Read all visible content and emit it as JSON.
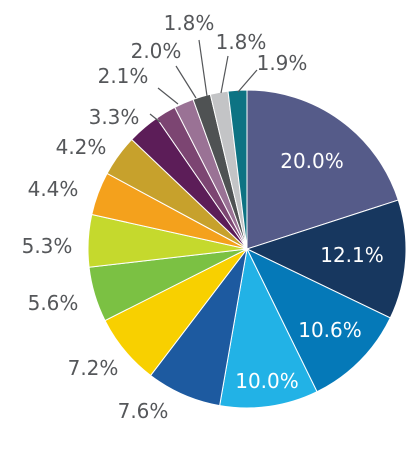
{
  "chart_data": {
    "type": "pie",
    "start": "12 o'clock, clockwise",
    "slices": [
      {
        "label": "20.0%",
        "value": 20.0,
        "color": "#555b89",
        "label_inside": true
      },
      {
        "label": "12.1%",
        "value": 12.1,
        "color": "#17375f",
        "label_inside": true
      },
      {
        "label": "10.6%",
        "value": 10.6,
        "color": "#0579b8",
        "label_inside": true
      },
      {
        "label": "10.0%",
        "value": 10.0,
        "color": "#22b2e6",
        "label_inside": true
      },
      {
        "label": "7.6%",
        "value": 7.6,
        "color": "#1d5aa0",
        "label_inside": false
      },
      {
        "label": "7.2%",
        "value": 7.2,
        "color": "#f8d000",
        "label_inside": false
      },
      {
        "label": "5.6%",
        "value": 5.6,
        "color": "#7bc143",
        "label_inside": false
      },
      {
        "label": "5.3%",
        "value": 5.3,
        "color": "#c5d92d",
        "label_inside": false
      },
      {
        "label": "4.4%",
        "value": 4.4,
        "color": "#f4a11c",
        "label_inside": false
      },
      {
        "label": "4.2%",
        "value": 4.2,
        "color": "#c7a12c",
        "label_inside": false
      },
      {
        "label": "3.3%",
        "value": 3.3,
        "color": "#5c1d58",
        "label_inside": false
      },
      {
        "label": "2.1%",
        "value": 2.1,
        "color": "#7c4572",
        "label_inside": false
      },
      {
        "label": "2.0%",
        "value": 2.0,
        "color": "#9a7295",
        "label_inside": false
      },
      {
        "label": "1.8%",
        "value": 1.8,
        "color": "#4f5253",
        "label_inside": false
      },
      {
        "label": "1.8%",
        "value": 1.8,
        "color": "#c3c4c6",
        "label_inside": false
      },
      {
        "label": "1.9%",
        "value": 1.9,
        "color": "#0d7383",
        "label_inside": false
      }
    ]
  }
}
